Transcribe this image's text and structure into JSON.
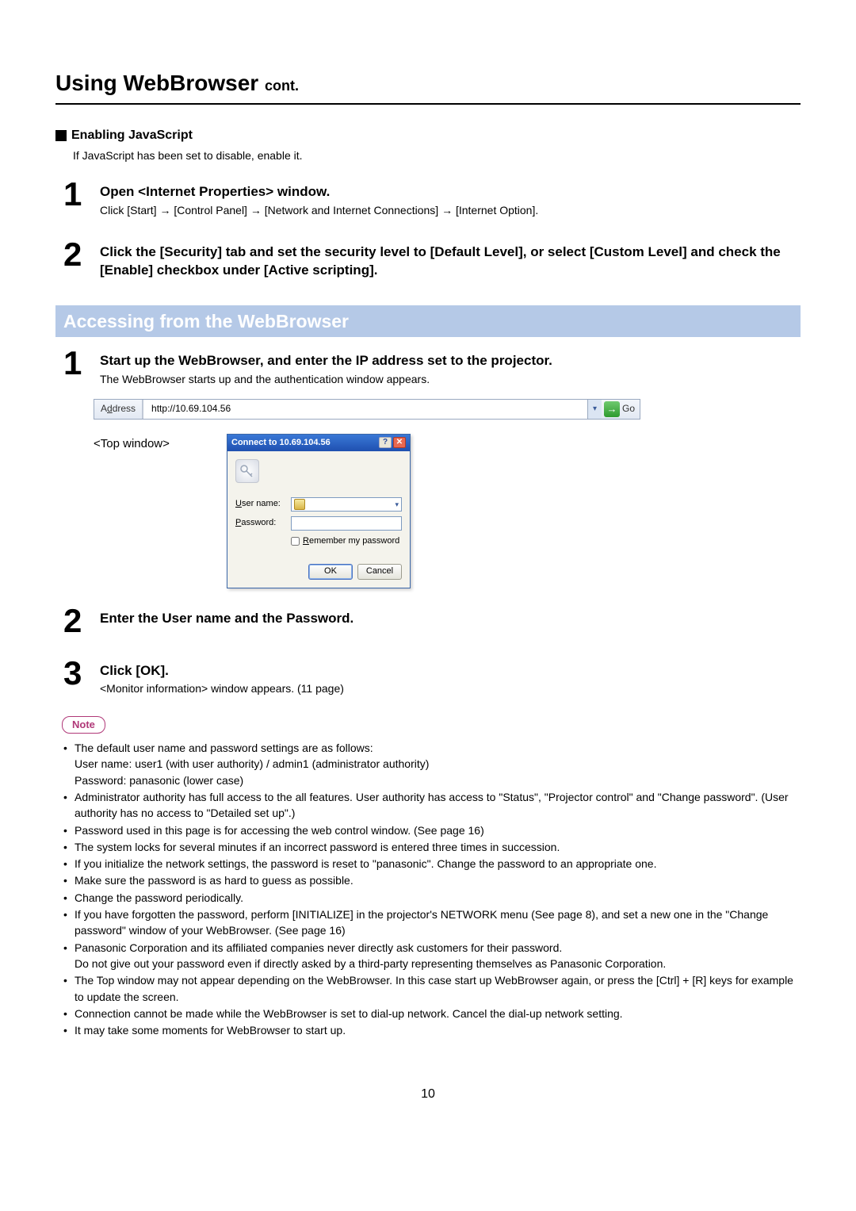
{
  "page": {
    "title_main": "Using WebBrowser",
    "title_cont": "cont.",
    "number": "10"
  },
  "enable_js": {
    "heading": "Enabling JavaScript",
    "desc": "If JavaScript has been set to disable, enable it."
  },
  "js_steps": {
    "s1": {
      "num": "1",
      "head": "Open <Internet Properties> window.",
      "sub": "Click [Start] → [Control Panel] → [Network and Internet Connections] → [Internet Option]."
    },
    "s2": {
      "num": "2",
      "head": "Click the [Security] tab and set the security level to [Default Level], or select [Custom Level] and check the [Enable] checkbox under [Active scripting]."
    }
  },
  "section2": "Accessing from the WebBrowser",
  "acc_steps": {
    "s1": {
      "num": "1",
      "head": "Start up the WebBrowser, and enter the IP address set to the projector.",
      "sub": "The WebBrowser starts up and the authentication window appears."
    },
    "s2": {
      "num": "2",
      "head": "Enter the User name and the Password."
    },
    "s3": {
      "num": "3",
      "head": "Click [OK].",
      "sub": "<Monitor information> window appears. (11 page)"
    }
  },
  "address_bar": {
    "label_pre": "A",
    "label_u": "d",
    "label_post": "dress",
    "url": "http://10.69.104.56",
    "go": "Go"
  },
  "topwindow_label": "<Top window>",
  "dialog": {
    "title": "Connect to 10.69.104.56",
    "user_u": "U",
    "user_rest": "ser name:",
    "pass_u": "P",
    "pass_rest": "assword:",
    "rem_u": "R",
    "rem_rest": "emember my password",
    "ok": "OK",
    "cancel": "Cancel"
  },
  "note_label": "Note",
  "notes": [
    "The default user name and password settings are as follows:\nUser name: user1 (with user authority) / admin1 (administrator authority)\nPassword: panasonic (lower case)",
    "Administrator authority has full access to the all features. User authority has access to \"Status\", \"Projector control\" and \"Change password\". (User authority has no access to \"Detailed set up\".)",
    "Password used in this page is for accessing the web control window. (See page 16)",
    "The system locks for several minutes if an incorrect password is entered three times in succession.",
    "If you initialize the network settings, the password is reset to \"panasonic\". Change the password to an appropriate one.",
    "Make sure the password is as hard to guess as possible.",
    "Change the password periodically.",
    "If you have forgotten the password, perform [INITIALIZE] in the projector's NETWORK menu (See page 8), and set a new one in the \"Change password\" window of your WebBrowser. (See page 16)",
    "Panasonic Corporation and its affiliated companies never directly ask customers for their password.\nDo not give out your password even if directly asked by a third-party representing themselves as Panasonic Corporation.",
    "The Top window may not appear depending on the WebBrowser. In this case start up WebBrowser again, or press the [Ctrl] + [R] keys for example to update the screen.",
    "Connection cannot be made while the WebBrowser is set to dial-up network. Cancel the dial-up network setting.",
    "It may take some moments for WebBrowser to start up."
  ]
}
